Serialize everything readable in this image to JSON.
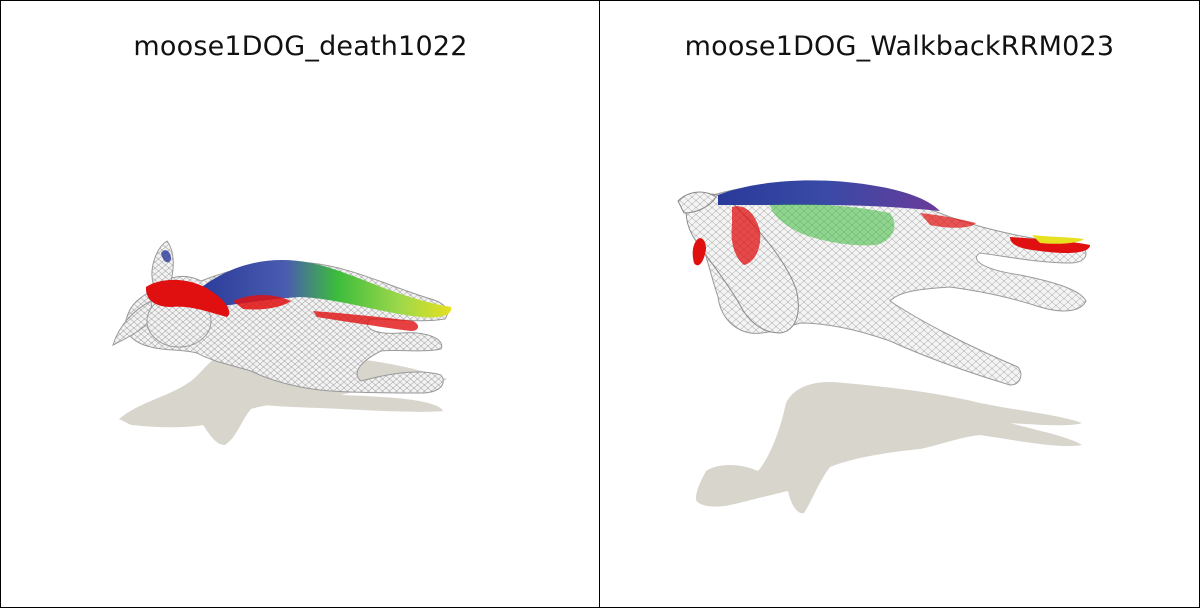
{
  "panels": [
    {
      "title": "moose1DOG_death1022"
    },
    {
      "title": "moose1DOG_WalkbackRRM023"
    }
  ],
  "colors": {
    "background": "#ffffff",
    "border": "#000000",
    "shadow": "#d8d5cd",
    "wireframe": "#e4e4e4",
    "segment_red": "#e01010",
    "segment_blue": "#2a3a9a",
    "segment_green": "#3cbc3c",
    "segment_yellow": "#e6e020"
  }
}
